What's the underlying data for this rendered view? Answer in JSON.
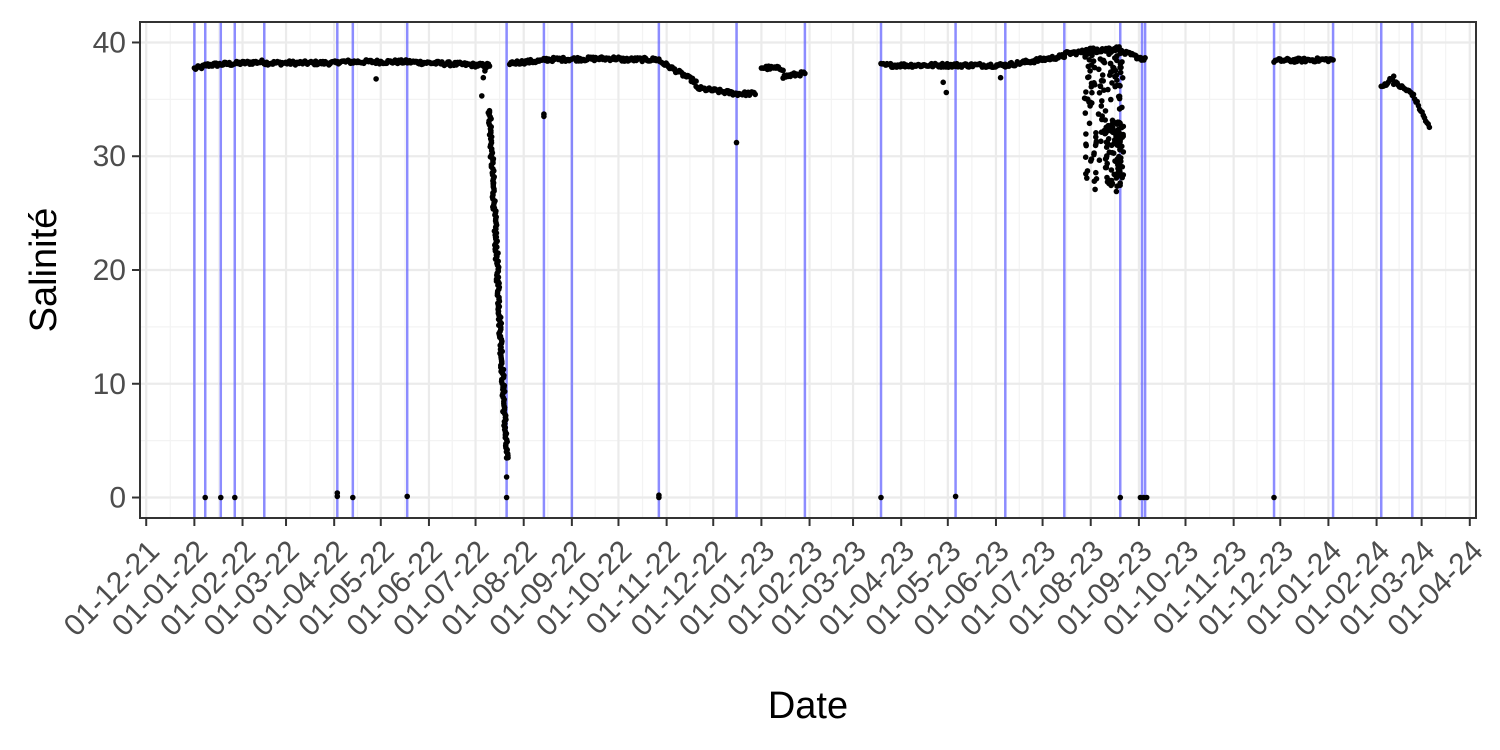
{
  "chart_data": {
    "type": "scatter",
    "xlabel": "Date",
    "ylabel": "Salinité",
    "x_type": "date",
    "x_range": [
      "2021-11-27",
      "2024-04-05"
    ],
    "ylim": [
      -1.8,
      41.8
    ],
    "y_ticks": [
      0,
      10,
      20,
      30,
      40
    ],
    "x_ticks": [
      {
        "date": "2021-12-01",
        "label": "01-12-21"
      },
      {
        "date": "2022-01-01",
        "label": "01-01-22"
      },
      {
        "date": "2022-02-01",
        "label": "01-02-22"
      },
      {
        "date": "2022-03-01",
        "label": "01-03-22"
      },
      {
        "date": "2022-04-01",
        "label": "01-04-22"
      },
      {
        "date": "2022-05-01",
        "label": "01-05-22"
      },
      {
        "date": "2022-06-01",
        "label": "01-06-22"
      },
      {
        "date": "2022-07-01",
        "label": "01-07-22"
      },
      {
        "date": "2022-08-01",
        "label": "01-08-22"
      },
      {
        "date": "2022-09-01",
        "label": "01-09-22"
      },
      {
        "date": "2022-10-01",
        "label": "01-10-22"
      },
      {
        "date": "2022-11-01",
        "label": "01-11-22"
      },
      {
        "date": "2022-12-01",
        "label": "01-12-22"
      },
      {
        "date": "2023-01-01",
        "label": "01-01-23"
      },
      {
        "date": "2023-02-01",
        "label": "01-02-23"
      },
      {
        "date": "2023-03-01",
        "label": "01-03-23"
      },
      {
        "date": "2023-04-01",
        "label": "01-04-23"
      },
      {
        "date": "2023-05-01",
        "label": "01-05-23"
      },
      {
        "date": "2023-06-01",
        "label": "01-06-23"
      },
      {
        "date": "2023-07-01",
        "label": "01-07-23"
      },
      {
        "date": "2023-08-01",
        "label": "01-08-23"
      },
      {
        "date": "2023-09-01",
        "label": "01-09-23"
      },
      {
        "date": "2023-10-01",
        "label": "01-10-23"
      },
      {
        "date": "2023-11-01",
        "label": "01-11-23"
      },
      {
        "date": "2023-12-01",
        "label": "01-12-23"
      },
      {
        "date": "2024-01-01",
        "label": "01-01-24"
      },
      {
        "date": "2024-02-01",
        "label": "01-02-24"
      },
      {
        "date": "2024-03-01",
        "label": "01-03-24"
      },
      {
        "date": "2024-04-01",
        "label": "01-04-24"
      }
    ],
    "grid": true,
    "legend": "none",
    "point_color": "#000000",
    "vline_color": "#6666ff",
    "vertical_lines": [
      "2022-01-01",
      "2022-01-08",
      "2022-01-18",
      "2022-01-27",
      "2022-02-15",
      "2022-04-03",
      "2022-04-13",
      "2022-05-18",
      "2022-07-21",
      "2022-08-14",
      "2022-09-01",
      "2022-10-27",
      "2022-12-16",
      "2023-01-29",
      "2023-03-19",
      "2023-05-06",
      "2023-06-07",
      "2023-07-15",
      "2023-08-20",
      "2023-09-03",
      "2023-09-05",
      "2023-11-27",
      "2024-01-04",
      "2024-02-04",
      "2024-02-24"
    ],
    "segments": [
      {
        "from": "2022-01-01",
        "to": "2022-01-08",
        "y_start": 37.7,
        "y_end": 37.9
      },
      {
        "from": "2022-01-08",
        "to": "2022-02-15",
        "y_start": 38.0,
        "y_end": 38.3
      },
      {
        "from": "2022-02-15",
        "to": "2022-04-03",
        "y_start": 38.2,
        "y_end": 38.2
      },
      {
        "from": "2022-04-03",
        "to": "2022-05-18",
        "y_start": 38.3,
        "y_end": 38.3
      },
      {
        "from": "2022-05-18",
        "to": "2022-07-04",
        "y_start": 38.3,
        "y_end": 38.0
      },
      {
        "from": "2022-07-04",
        "to": "2022-07-10",
        "y_start": 38.0,
        "y_end": 38.0
      },
      {
        "from": "2022-07-10",
        "to": "2022-07-21",
        "y_start": 34.0,
        "y_end": 3.5
      },
      {
        "from": "2022-07-23",
        "to": "2022-08-14",
        "y_start": 38.2,
        "y_end": 38.4
      },
      {
        "from": "2022-08-14",
        "to": "2022-10-01",
        "y_start": 38.5,
        "y_end": 38.6
      },
      {
        "from": "2022-10-01",
        "to": "2022-10-27",
        "y_start": 38.5,
        "y_end": 38.5
      },
      {
        "from": "2022-10-27",
        "to": "2022-11-20",
        "y_start": 38.4,
        "y_end": 36.5
      },
      {
        "from": "2022-11-20",
        "to": "2022-12-16",
        "y_start": 36.0,
        "y_end": 35.5
      },
      {
        "from": "2022-12-16",
        "to": "2022-12-28",
        "y_start": 35.5,
        "y_end": 35.5
      },
      {
        "from": "2023-01-01",
        "to": "2023-01-15",
        "y_start": 37.8,
        "y_end": 37.7
      },
      {
        "from": "2023-01-15",
        "to": "2023-01-29",
        "y_start": 37.0,
        "y_end": 37.3
      },
      {
        "from": "2023-03-19",
        "to": "2023-05-06",
        "y_start": 38.0,
        "y_end": 38.0
      },
      {
        "from": "2023-05-06",
        "to": "2023-06-07",
        "y_start": 38.0,
        "y_end": 38.0
      },
      {
        "from": "2023-06-07",
        "to": "2023-07-15",
        "y_start": 38.0,
        "y_end": 38.8
      },
      {
        "from": "2023-07-15",
        "to": "2023-08-20",
        "y_start": 39.0,
        "y_end": 39.5
      },
      {
        "from": "2023-08-20",
        "to": "2023-09-05",
        "y_start": 39.2,
        "y_end": 38.5
      },
      {
        "from": "2023-11-27",
        "to": "2024-01-04",
        "y_start": 38.4,
        "y_end": 38.5
      },
      {
        "from": "2024-02-04",
        "to": "2024-02-12",
        "y_start": 36.0,
        "y_end": 37.0
      },
      {
        "from": "2024-02-12",
        "to": "2024-02-24",
        "y_start": 36.5,
        "y_end": 35.5
      },
      {
        "from": "2024-02-24",
        "to": "2024-03-06",
        "y_start": 35.5,
        "y_end": 32.5
      }
    ],
    "scatter_clusters": [
      {
        "from": "2023-07-28",
        "to": "2023-08-22",
        "y_min": 27.0,
        "y_max": 39.5
      },
      {
        "from": "2023-08-10",
        "to": "2023-08-22",
        "y_min": 26.5,
        "y_max": 33.0
      }
    ],
    "outliers": [
      {
        "date": "2022-01-08",
        "y": 0.0
      },
      {
        "date": "2022-01-18",
        "y": 0.0
      },
      {
        "date": "2022-01-27",
        "y": 0.0
      },
      {
        "date": "2022-04-03",
        "y": 0.1
      },
      {
        "date": "2022-04-03",
        "y": 0.4
      },
      {
        "date": "2022-04-13",
        "y": 0.0
      },
      {
        "date": "2022-05-18",
        "y": 0.1
      },
      {
        "date": "2022-07-21",
        "y": 0.0
      },
      {
        "date": "2022-07-21",
        "y": 1.8
      },
      {
        "date": "2022-07-21",
        "y": 4.0
      },
      {
        "date": "2022-08-14",
        "y": 33.5
      },
      {
        "date": "2022-08-14",
        "y": 33.7
      },
      {
        "date": "2022-10-27",
        "y": 0.0
      },
      {
        "date": "2022-10-27",
        "y": 0.2
      },
      {
        "date": "2022-12-16",
        "y": 31.2
      },
      {
        "date": "2023-03-19",
        "y": 0.0
      },
      {
        "date": "2023-05-06",
        "y": 0.1
      },
      {
        "date": "2023-04-30",
        "y": 35.6
      },
      {
        "date": "2023-04-28",
        "y": 36.5
      },
      {
        "date": "2023-08-20",
        "y": 0.0
      },
      {
        "date": "2023-09-02",
        "y": 0.0
      },
      {
        "date": "2023-09-04",
        "y": 0.0
      },
      {
        "date": "2023-09-06",
        "y": 0.0
      },
      {
        "date": "2023-11-27",
        "y": 0.0
      },
      {
        "date": "2022-07-05",
        "y": 35.3
      },
      {
        "date": "2022-07-06",
        "y": 36.9
      },
      {
        "date": "2022-07-07",
        "y": 37.5
      },
      {
        "date": "2022-07-08",
        "y": 37.8
      },
      {
        "date": "2022-04-28",
        "y": 36.8
      },
      {
        "date": "2023-06-04",
        "y": 36.9
      }
    ]
  }
}
